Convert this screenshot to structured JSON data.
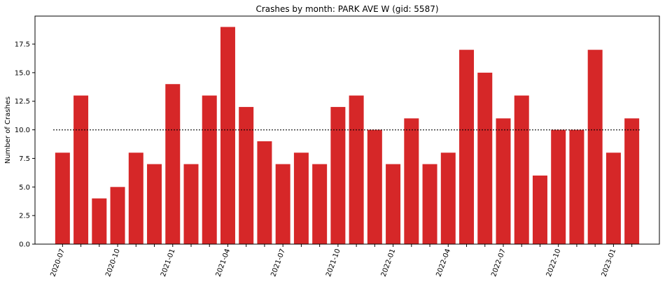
{
  "chart_data": {
    "type": "bar",
    "title": "Crashes by month: PARK AVE W (gid: 5587)",
    "xlabel": "",
    "ylabel": "Number of Crashes",
    "ylim": [
      0,
      19.95
    ],
    "yticks": [
      "0.0",
      "2.5",
      "5.0",
      "7.5",
      "10.0",
      "12.5",
      "15.0",
      "17.5"
    ],
    "ytick_values": [
      0,
      2.5,
      5,
      7.5,
      10,
      12.5,
      15,
      17.5
    ],
    "categories": [
      "2020-07",
      "2020-08",
      "2020-09",
      "2020-10",
      "2020-11",
      "2020-12",
      "2021-01",
      "2021-02",
      "2021-03",
      "2021-04",
      "2021-05",
      "2021-06",
      "2021-07",
      "2021-08",
      "2021-09",
      "2021-10",
      "2021-11",
      "2021-12",
      "2022-01",
      "2022-02",
      "2022-03",
      "2022-04",
      "2022-05",
      "2022-06",
      "2022-07",
      "2022-08",
      "2022-09",
      "2022-10",
      "2022-11",
      "2022-12",
      "2023-01",
      "2023-02"
    ],
    "values": [
      8,
      13,
      4,
      5,
      8,
      7,
      14,
      7,
      13,
      19,
      12,
      9,
      7,
      8,
      7,
      12,
      13,
      10,
      7,
      11,
      7,
      8,
      17,
      15,
      11,
      13,
      6,
      10,
      10,
      17,
      8,
      11
    ],
    "xtick_labels": [
      "2020-07",
      "2020-10",
      "2021-01",
      "2021-04",
      "2021-07",
      "2021-10",
      "2022-01",
      "2022-04",
      "2022-07",
      "2022-10",
      "2023-01"
    ],
    "reference_line": {
      "value": 10,
      "style": "dotted"
    },
    "bar_color": "#d62728",
    "grid": false,
    "legend": "none"
  }
}
